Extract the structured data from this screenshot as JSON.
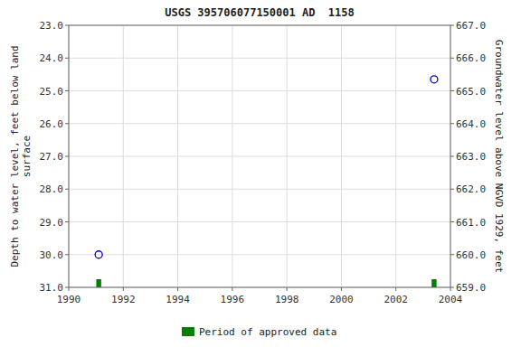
{
  "chart_data": {
    "type": "scatter",
    "title": "USGS 395706077150001 AD  1158",
    "y_label": "Depth to water level, feet below land\nsurface",
    "y2_label": "Groundwater level above NGVD 1929, feet",
    "xlim": [
      1990,
      2004
    ],
    "xticks": [
      1990,
      1992,
      1994,
      1996,
      1998,
      2000,
      2002,
      2004
    ],
    "ylim": [
      31.0,
      23.0
    ],
    "yticks": [
      {
        "value": 23.0,
        "label": "23.0"
      },
      {
        "value": 24.0,
        "label": "24.0"
      },
      {
        "value": 25.0,
        "label": "25.0"
      },
      {
        "value": 26.0,
        "label": "26.0"
      },
      {
        "value": 27.0,
        "label": "27.0"
      },
      {
        "value": 28.0,
        "label": "28.0"
      },
      {
        "value": 29.0,
        "label": "29.0"
      },
      {
        "value": 30.0,
        "label": "30.0"
      },
      {
        "value": 31.0,
        "label": "31.0"
      }
    ],
    "y2lim": [
      659.0,
      667.0
    ],
    "y2ticks": [
      {
        "value": 667.0,
        "label": "667.0"
      },
      {
        "value": 666.0,
        "label": "666.0"
      },
      {
        "value": 665.0,
        "label": "665.0"
      },
      {
        "value": 664.0,
        "label": "664.0"
      },
      {
        "value": 663.0,
        "label": "663.0"
      },
      {
        "value": 662.0,
        "label": "662.0"
      },
      {
        "value": 661.0,
        "label": "661.0"
      },
      {
        "value": 660.0,
        "label": "660.0"
      },
      {
        "value": 659.0,
        "label": "659.0"
      }
    ],
    "grid": true,
    "legend": "bottom",
    "series": [
      {
        "type": "scatter",
        "color": "#0000cc",
        "marker": "open-circle",
        "x": [
          1991.1,
          2003.4
        ],
        "values": [
          30.0,
          24.65
        ]
      },
      {
        "type": "bar",
        "name": "Period of approved data",
        "color": "#008000",
        "x": [
          1991.1,
          2003.4
        ],
        "widths": [
          0.18,
          0.18
        ]
      }
    ]
  }
}
